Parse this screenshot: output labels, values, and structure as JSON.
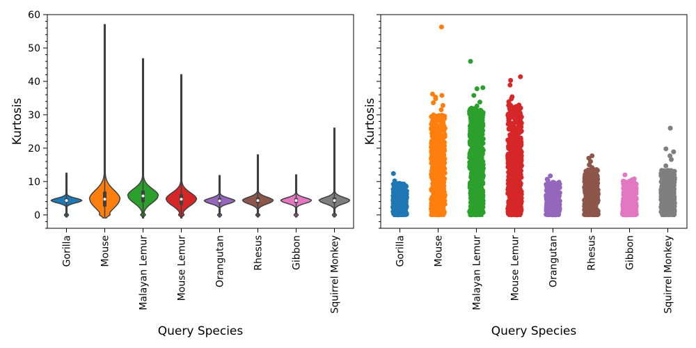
{
  "chart_data": [
    {
      "type": "violin",
      "xlabel": "Query Species",
      "ylabel": "Kurtosis",
      "ylim": [
        -4,
        60
      ],
      "yticks": [
        0,
        10,
        20,
        30,
        40,
        50,
        60
      ],
      "grid": false,
      "legend": "none",
      "categories": [
        "Gorilla",
        "Mouse",
        "Malayan Lemur",
        "Mouse Lemur",
        "Orangutan",
        "Rhesus",
        "Gibbon",
        "Squirrel Monkey"
      ],
      "colors": [
        "#1f77b4",
        "#ff7f0e",
        "#2ca02c",
        "#d62728",
        "#9467bd",
        "#8c564b",
        "#e377c2",
        "#7f7f7f"
      ],
      "distributions": [
        {
          "category": "Gorilla",
          "min": -0.3,
          "q1": 3.8,
          "median": 4.3,
          "q3": 5.0,
          "max": 12.5
        },
        {
          "category": "Mouse",
          "min": -0.6,
          "q1": 2.5,
          "median": 4.7,
          "q3": 7.0,
          "max": 57.0
        },
        {
          "category": "Malayan Lemur",
          "min": -0.6,
          "q1": 3.8,
          "median": 5.7,
          "q3": 7.3,
          "max": 46.8
        },
        {
          "category": "Mouse Lemur",
          "min": -0.6,
          "q1": 3.0,
          "median": 4.7,
          "q3": 6.2,
          "max": 42.0
        },
        {
          "category": "Orangutan",
          "min": -0.3,
          "q1": 3.6,
          "median": 4.2,
          "q3": 5.0,
          "max": 11.8
        },
        {
          "category": "Rhesus",
          "min": -0.3,
          "q1": 3.5,
          "median": 4.3,
          "q3": 5.2,
          "max": 18.0
        },
        {
          "category": "Gibbon",
          "min": -0.3,
          "q1": 3.6,
          "median": 4.3,
          "q3": 5.0,
          "max": 12.0
        },
        {
          "category": "Squirrel Monkey",
          "min": -0.3,
          "q1": 3.6,
          "median": 4.3,
          "q3": 5.2,
          "max": 26.0
        }
      ]
    },
    {
      "type": "strip",
      "xlabel": "Query Species",
      "ylabel": "Kurtosis",
      "ylim": [
        -4,
        60
      ],
      "shared_y": true,
      "grid": false,
      "legend": "none",
      "categories": [
        "Gorilla",
        "Mouse",
        "Malayan Lemur",
        "Mouse Lemur",
        "Orangutan",
        "Rhesus",
        "Gibbon",
        "Squirrel Monkey"
      ],
      "colors": [
        "#1f77b4",
        "#ff7f0e",
        "#2ca02c",
        "#d62728",
        "#9467bd",
        "#8c564b",
        "#e377c2",
        "#7f7f7f"
      ],
      "bulk_ranges": [
        {
          "category": "Gorilla",
          "low": 0,
          "high": 9.5
        },
        {
          "category": "Mouse",
          "low": 0,
          "high": 30.0
        },
        {
          "category": "Malayan Lemur",
          "low": 0,
          "high": 32.0
        },
        {
          "category": "Mouse Lemur",
          "low": 0,
          "high": 33.0
        },
        {
          "category": "Orangutan",
          "low": 0,
          "high": 9.8
        },
        {
          "category": "Rhesus",
          "low": 0,
          "high": 13.8
        },
        {
          "category": "Gibbon",
          "low": 0,
          "high": 10.2
        },
        {
          "category": "Squirrel Monkey",
          "low": 0,
          "high": 13.5
        }
      ],
      "outliers": [
        {
          "category": "Gorilla",
          "values": [
            12.4,
            10.2
          ]
        },
        {
          "category": "Mouse",
          "values": [
            56.3,
            36.2,
            35.8,
            35.3,
            34.8,
            33.6,
            32.8,
            31.5
          ]
        },
        {
          "category": "Malayan Lemur",
          "values": [
            46.0,
            38.1,
            37.8,
            35.8,
            33.8,
            32.6
          ]
        },
        {
          "category": "Mouse Lemur",
          "values": [
            41.4,
            40.3,
            38.9,
            35.4,
            34.8,
            33.9
          ]
        },
        {
          "category": "Orangutan",
          "values": [
            11.7,
            10.7,
            10.3
          ]
        },
        {
          "category": "Rhesus",
          "values": [
            17.7,
            17.0,
            16.0,
            15.0,
            14.2
          ]
        },
        {
          "category": "Gibbon",
          "values": [
            12.0,
            10.8,
            10.5
          ]
        },
        {
          "category": "Squirrel Monkey",
          "values": [
            26.0,
            19.8,
            18.9,
            17.7,
            16.6,
            14.7
          ]
        }
      ]
    }
  ]
}
